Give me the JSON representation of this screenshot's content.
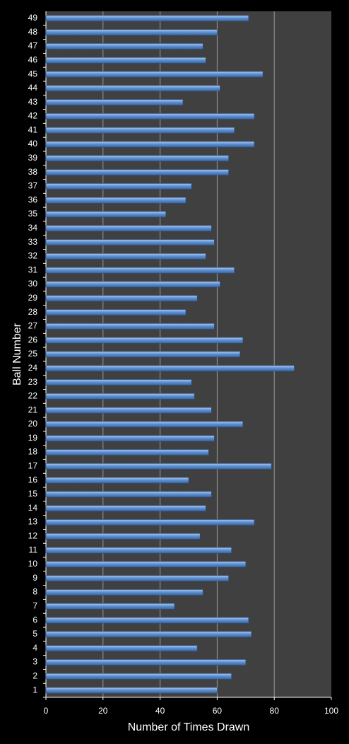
{
  "chart_data": {
    "type": "barh",
    "xlabel": "Number of Times Drawn",
    "ylabel": "Ball Number",
    "categories": [
      "1",
      "2",
      "3",
      "4",
      "5",
      "6",
      "7",
      "8",
      "9",
      "10",
      "11",
      "12",
      "13",
      "14",
      "15",
      "16",
      "17",
      "18",
      "19",
      "20",
      "21",
      "22",
      "23",
      "24",
      "25",
      "26",
      "27",
      "28",
      "29",
      "30",
      "31",
      "32",
      "33",
      "34",
      "35",
      "36",
      "37",
      "38",
      "39",
      "40",
      "41",
      "42",
      "43",
      "44",
      "45",
      "46",
      "47",
      "48",
      "49"
    ],
    "values": [
      60,
      65,
      70,
      53,
      72,
      71,
      45,
      55,
      64,
      70,
      65,
      54,
      73,
      56,
      58,
      50,
      79,
      57,
      59,
      69,
      58,
      52,
      51,
      87,
      68,
      69,
      59,
      49,
      53,
      61,
      66,
      56,
      59,
      58,
      42,
      49,
      51,
      64,
      64,
      73,
      66,
      73,
      48,
      61,
      76,
      56,
      55,
      60,
      71
    ],
    "color": "#5a8ed0",
    "xlim": [
      0,
      100
    ],
    "xticks": [
      0,
      20,
      40,
      60,
      80,
      100
    ],
    "grid": true
  }
}
